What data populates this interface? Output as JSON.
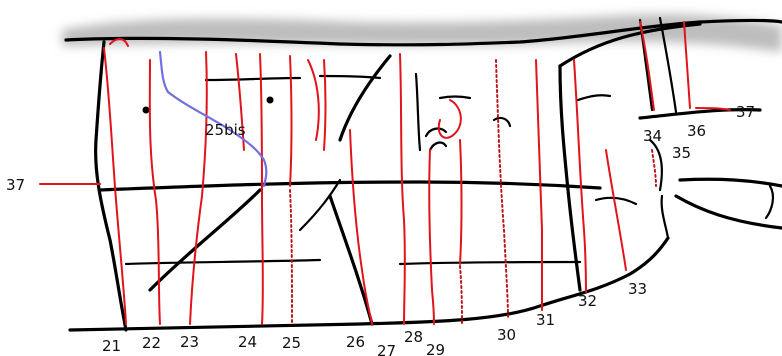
{
  "colors": {
    "route": "#e0141a",
    "variant_route": "#7070e0",
    "rock": "#000000",
    "shadow": "#bcbcbc",
    "background": "#ffffff"
  },
  "labels": {
    "r21": "21",
    "r22": "22",
    "r23": "23",
    "r24": "24",
    "r25": "25",
    "r25bis": "25bis",
    "r26": "26",
    "r27": "27",
    "r28": "28",
    "r29": "29",
    "r30": "30",
    "r31": "31",
    "r32": "32",
    "r33": "33",
    "r34": "34",
    "r35": "35",
    "r36": "36",
    "r37_left": "37",
    "r37_right": "37"
  }
}
